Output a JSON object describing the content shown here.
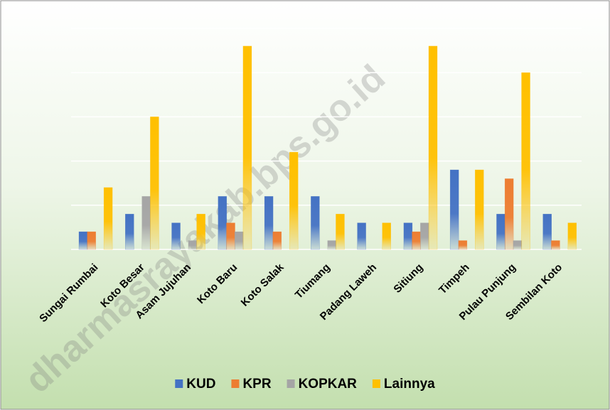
{
  "chart_data": {
    "type": "bar",
    "watermark": "dharmasrayakab.bps.go.id",
    "categories": [
      "Sungai Rumbai",
      "Koto Besar",
      "Asam Jujuhan",
      "Koto Baru",
      "Koto Salak",
      "Tiumang",
      "Padang Laweh",
      "Sitiung",
      "Timpeh",
      "Pulau Punjung",
      "Sembilan Koto"
    ],
    "series": [
      {
        "name": "KUD",
        "color": "#4472c4",
        "values": [
          2,
          4,
          3,
          6,
          6,
          6,
          3,
          3,
          9,
          4,
          4
        ]
      },
      {
        "name": "KPR",
        "color": "#ed7d31",
        "values": [
          2,
          0,
          0,
          3,
          2,
          0,
          0,
          2,
          1,
          8,
          1
        ]
      },
      {
        "name": "KOPKAR",
        "color": "#a5a5a5",
        "values": [
          0,
          6,
          1,
          2,
          0,
          1,
          0,
          3,
          0,
          1,
          0
        ]
      },
      {
        "name": "Lainnya",
        "color": "#ffc000",
        "values": [
          7,
          15,
          4,
          23,
          11,
          4,
          3,
          23,
          9,
          20,
          3
        ]
      }
    ],
    "ylim": [
      0,
      25
    ],
    "yticks": [
      0,
      5,
      10,
      15,
      20,
      25
    ],
    "grid": true,
    "legend": "bottom"
  }
}
